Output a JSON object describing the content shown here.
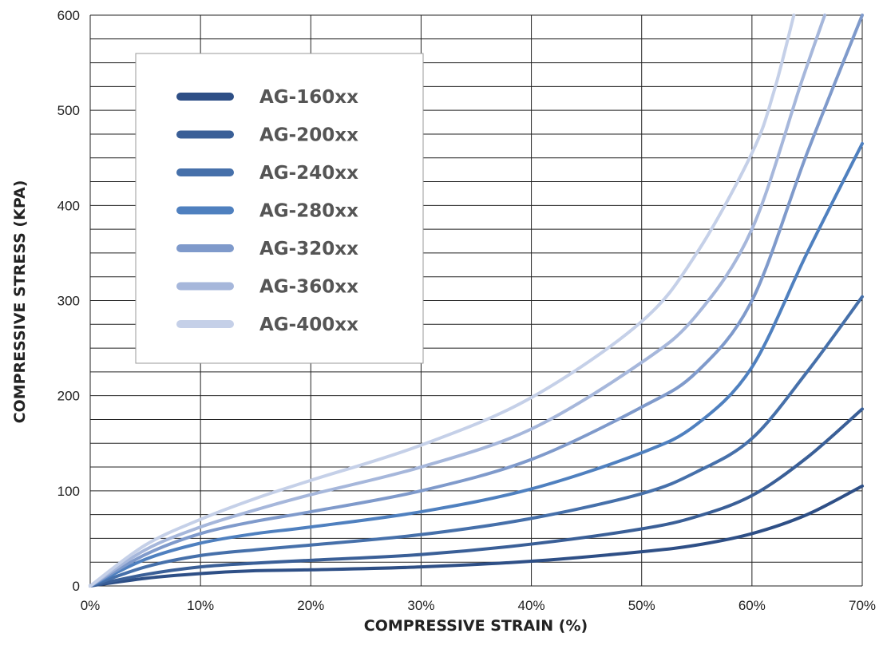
{
  "chart_data": {
    "type": "line",
    "xlabel": "COMPRESSIVE STRAIN (%)",
    "ylabel": "COMPRESSIVE STRESS (KPA)",
    "xlim": [
      0,
      70
    ],
    "ylim": [
      0,
      600
    ],
    "x_ticks": [
      0,
      10,
      20,
      30,
      40,
      50,
      60,
      70
    ],
    "x_tick_labels": [
      "0%",
      "10%",
      "20%",
      "30%",
      "40%",
      "50%",
      "60%",
      "70%"
    ],
    "y_ticks": [
      0,
      100,
      200,
      300,
      400,
      500,
      600
    ],
    "y_tick_labels": [
      "0",
      "100",
      "200",
      "300",
      "400",
      "500",
      "600"
    ],
    "grid": true,
    "legend_position": "top-left",
    "series": [
      {
        "name": "AG-160xx",
        "color": "#2e4f86",
        "points": [
          [
            0,
            0
          ],
          [
            5,
            8
          ],
          [
            10,
            13
          ],
          [
            15,
            16
          ],
          [
            20,
            17
          ],
          [
            30,
            20
          ],
          [
            40,
            26
          ],
          [
            50,
            36
          ],
          [
            55,
            43
          ],
          [
            60,
            55
          ],
          [
            65,
            75
          ],
          [
            70,
            105
          ]
        ]
      },
      {
        "name": "AG-200xx",
        "color": "#3a5f97",
        "points": [
          [
            0,
            0
          ],
          [
            5,
            12
          ],
          [
            10,
            20
          ],
          [
            15,
            24
          ],
          [
            20,
            27
          ],
          [
            30,
            33
          ],
          [
            40,
            44
          ],
          [
            50,
            60
          ],
          [
            55,
            73
          ],
          [
            60,
            95
          ],
          [
            65,
            135
          ],
          [
            70,
            186
          ]
        ]
      },
      {
        "name": "AG-240xx",
        "color": "#4670aa",
        "points": [
          [
            0,
            0
          ],
          [
            5,
            20
          ],
          [
            10,
            32
          ],
          [
            15,
            38
          ],
          [
            20,
            43
          ],
          [
            30,
            54
          ],
          [
            40,
            71
          ],
          [
            50,
            97
          ],
          [
            55,
            120
          ],
          [
            60,
            155
          ],
          [
            65,
            225
          ],
          [
            70,
            304
          ]
        ]
      },
      {
        "name": "AG-280xx",
        "color": "#4f80bf",
        "points": [
          [
            0,
            0
          ],
          [
            5,
            28
          ],
          [
            10,
            45
          ],
          [
            15,
            55
          ],
          [
            20,
            62
          ],
          [
            30,
            78
          ],
          [
            40,
            102
          ],
          [
            50,
            140
          ],
          [
            55,
            170
          ],
          [
            60,
            230
          ],
          [
            65,
            350
          ],
          [
            70,
            465
          ]
        ]
      },
      {
        "name": "AG-320xx",
        "color": "#7f9acb",
        "points": [
          [
            0,
            0
          ],
          [
            5,
            33
          ],
          [
            10,
            55
          ],
          [
            15,
            68
          ],
          [
            20,
            78
          ],
          [
            30,
            100
          ],
          [
            40,
            133
          ],
          [
            50,
            188
          ],
          [
            55,
            225
          ],
          [
            60,
            300
          ],
          [
            65,
            455
          ],
          [
            70,
            600
          ]
        ]
      },
      {
        "name": "AG-360xx",
        "color": "#a6b7db",
        "points": [
          [
            0,
            0
          ],
          [
            5,
            38
          ],
          [
            10,
            62
          ],
          [
            15,
            80
          ],
          [
            20,
            96
          ],
          [
            30,
            125
          ],
          [
            40,
            165
          ],
          [
            50,
            235
          ],
          [
            55,
            285
          ],
          [
            60,
            375
          ],
          [
            64.5,
            530
          ],
          [
            66.6,
            600
          ]
        ]
      },
      {
        "name": "AG-400xx",
        "color": "#c5d0e8",
        "points": [
          [
            0,
            0
          ],
          [
            5,
            43
          ],
          [
            10,
            70
          ],
          [
            15,
            92
          ],
          [
            20,
            111
          ],
          [
            30,
            148
          ],
          [
            40,
            198
          ],
          [
            50,
            278
          ],
          [
            55,
            350
          ],
          [
            60,
            455
          ],
          [
            62,
            520
          ],
          [
            63.8,
            600
          ]
        ]
      }
    ]
  }
}
